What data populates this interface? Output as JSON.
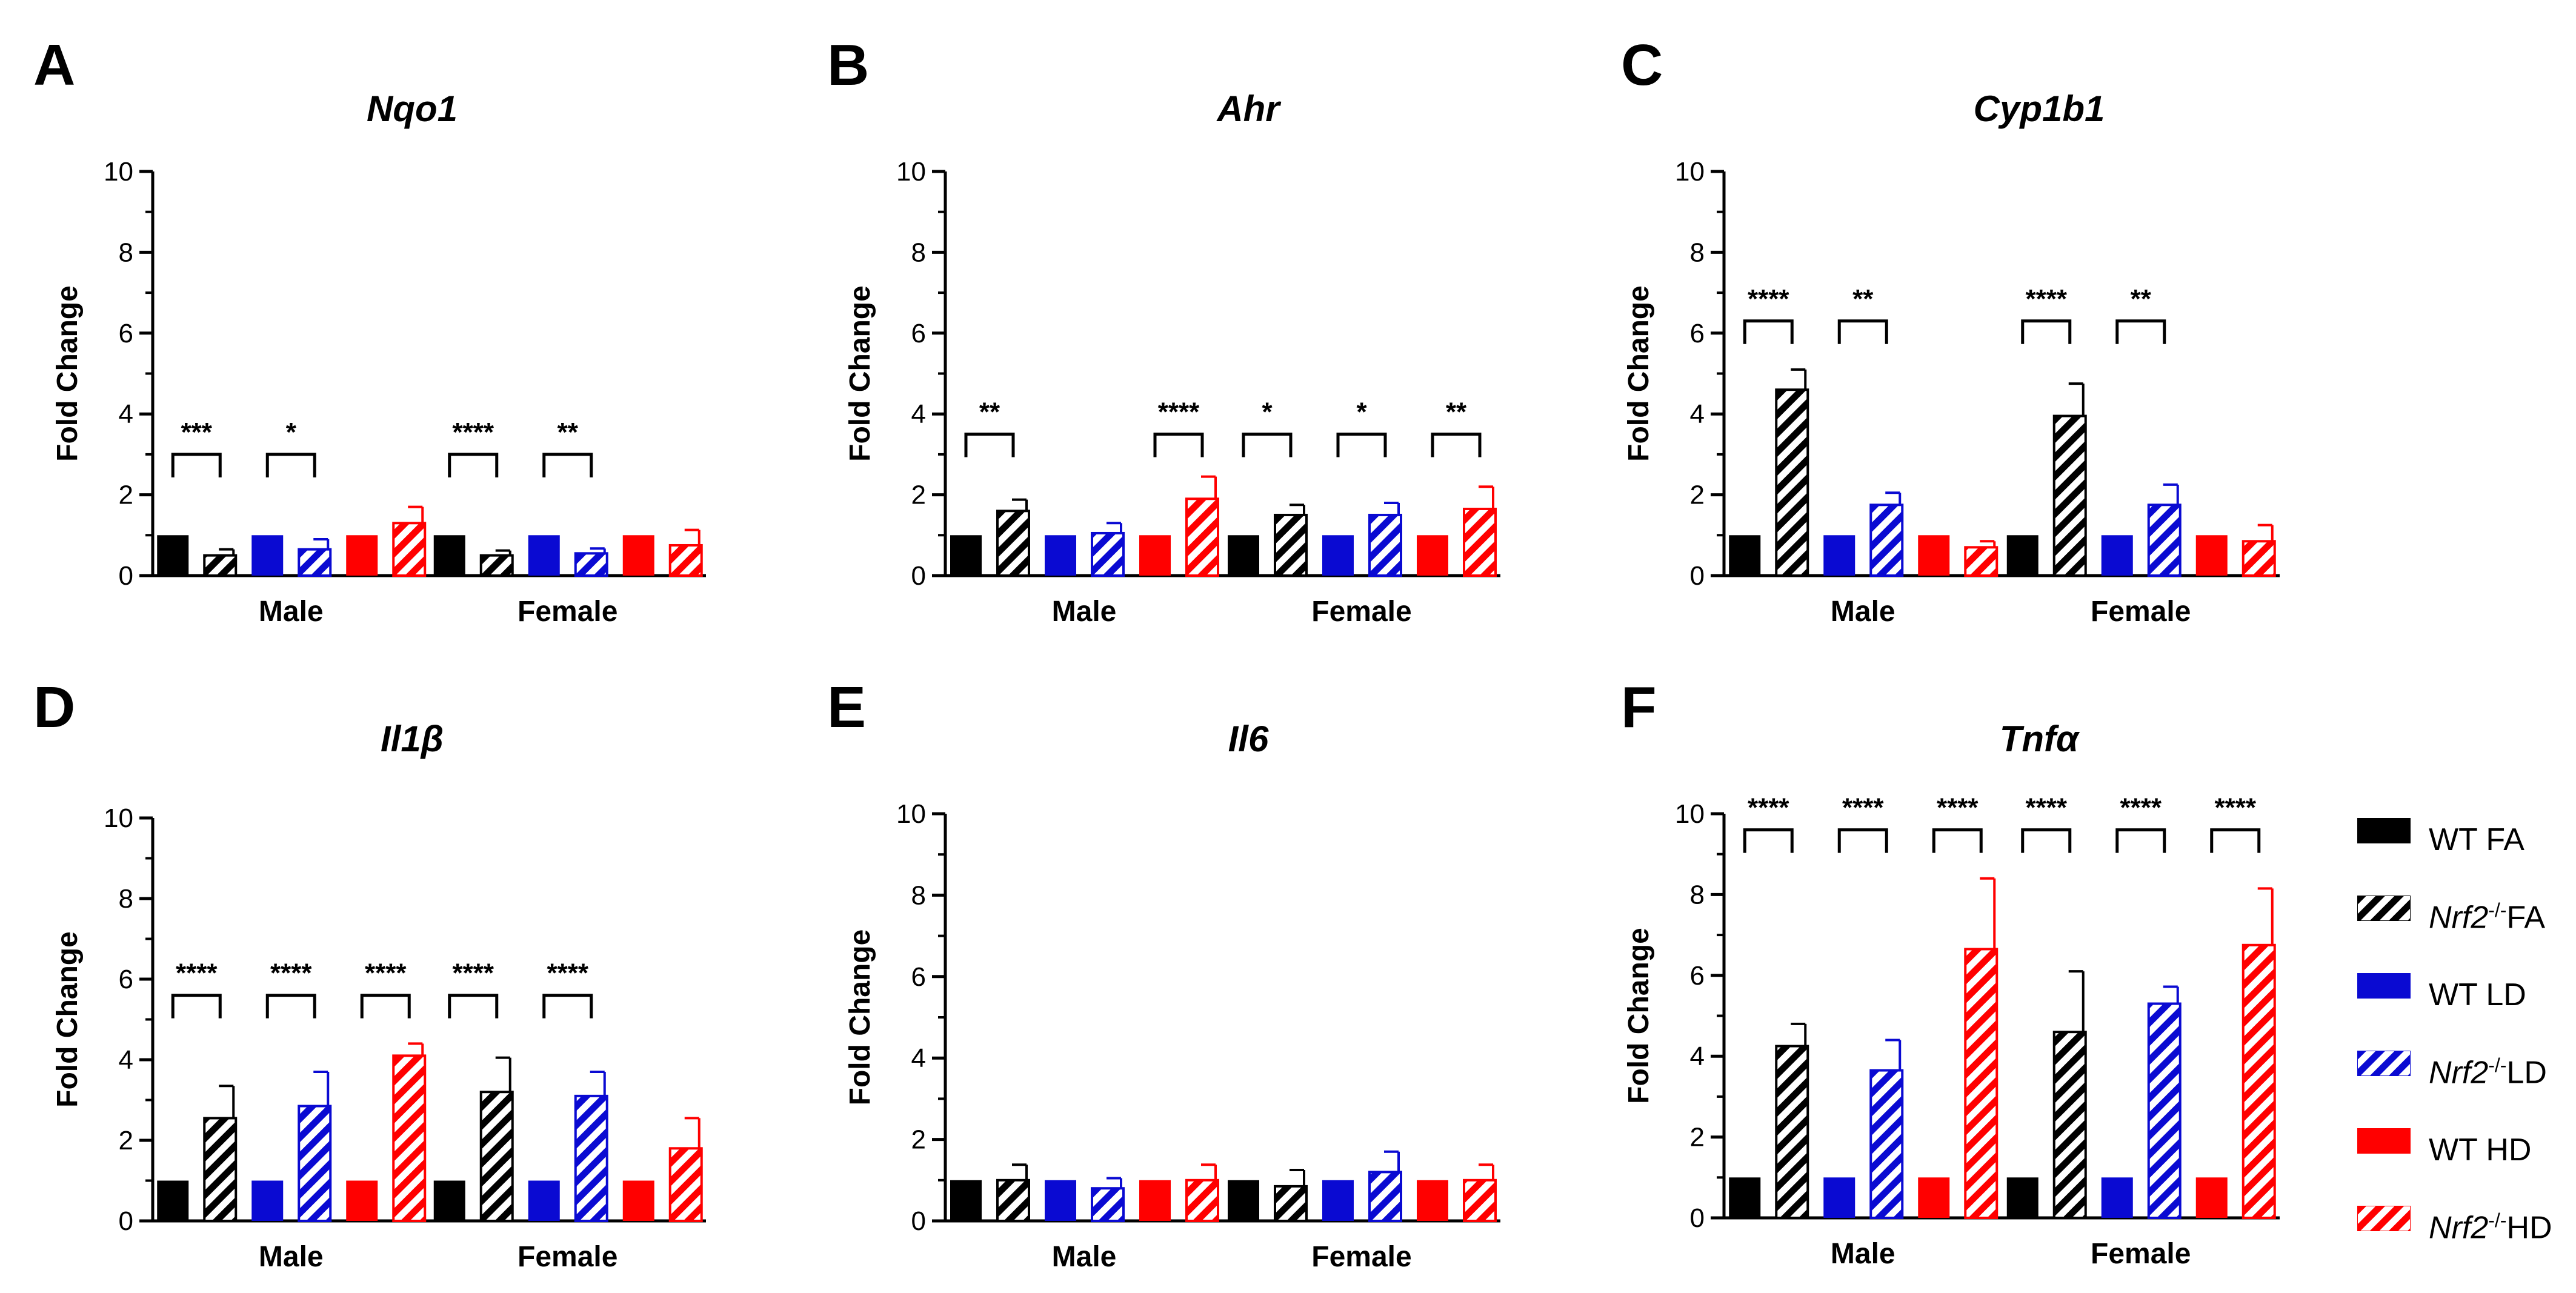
{
  "legend": {
    "items": [
      {
        "key": "wt_fa",
        "text": "WT FA",
        "italic": "",
        "sup": "",
        "suffix": "",
        "color": "#000000",
        "hatched": false
      },
      {
        "key": "nrf2_fa",
        "text": "",
        "italic": "Nrf2",
        "sup": "-/-",
        "suffix": "FA",
        "color": "#000000",
        "hatched": true
      },
      {
        "key": "wt_ld",
        "text": "WT LD",
        "italic": "",
        "sup": "",
        "suffix": "",
        "color": "#0a0ad2",
        "hatched": false
      },
      {
        "key": "nrf2_ld",
        "text": "",
        "italic": "Nrf2",
        "sup": "-/-",
        "suffix": "LD",
        "color": "#0a0ad2",
        "hatched": true
      },
      {
        "key": "wt_hd",
        "text": "WT HD",
        "italic": "",
        "sup": "",
        "suffix": "",
        "color": "#ff0000",
        "hatched": false
      },
      {
        "key": "nrf2_hd",
        "text": "",
        "italic": "Nrf2",
        "sup": "-/-",
        "suffix": "HD",
        "color": "#ff0000",
        "hatched": true
      }
    ]
  },
  "chart_data": [
    {
      "panel": "A",
      "type": "bar",
      "title": "Nqo1",
      "ylabel": "Fold Change",
      "ylim": [
        0,
        10
      ],
      "yticks": [
        0,
        2,
        4,
        6,
        8,
        10
      ],
      "categories": [
        "Male",
        "Female"
      ],
      "series": [
        {
          "name": "WT FA",
          "values": [
            1.0,
            1.0
          ],
          "errors": [
            0,
            0
          ]
        },
        {
          "name": "Nrf2-/- FA",
          "values": [
            0.5,
            0.5
          ],
          "errors": [
            0.15,
            0.12
          ]
        },
        {
          "name": "WT LD",
          "values": [
            1.0,
            1.0
          ],
          "errors": [
            0,
            0
          ]
        },
        {
          "name": "Nrf2-/- LD",
          "values": [
            0.65,
            0.55
          ],
          "errors": [
            0.25,
            0.12
          ]
        },
        {
          "name": "WT HD",
          "values": [
            1.0,
            1.0
          ],
          "errors": [
            0,
            0
          ]
        },
        {
          "name": "Nrf2-/- HD",
          "values": [
            1.3,
            0.75
          ],
          "errors": [
            0.4,
            0.38
          ]
        }
      ],
      "significance": [
        {
          "category": "Male",
          "pair": 0,
          "stars": "***",
          "y": 3.0
        },
        {
          "category": "Male",
          "pair": 1,
          "stars": "*",
          "y": 3.0
        },
        {
          "category": "Female",
          "pair": 0,
          "stars": "****",
          "y": 3.0
        },
        {
          "category": "Female",
          "pair": 1,
          "stars": "**",
          "y": 3.0
        }
      ]
    },
    {
      "panel": "B",
      "type": "bar",
      "title": "Ahr",
      "ylabel": "Fold Change",
      "ylim": [
        0,
        10
      ],
      "yticks": [
        0,
        2,
        4,
        6,
        8,
        10
      ],
      "categories": [
        "Male",
        "Female"
      ],
      "series": [
        {
          "name": "WT FA",
          "values": [
            1.0,
            1.0
          ],
          "errors": [
            0,
            0
          ]
        },
        {
          "name": "Nrf2-/- FA",
          "values": [
            1.6,
            1.5
          ],
          "errors": [
            0.28,
            0.25
          ]
        },
        {
          "name": "WT LD",
          "values": [
            1.0,
            1.0
          ],
          "errors": [
            0,
            0
          ]
        },
        {
          "name": "Nrf2-/- LD",
          "values": [
            1.05,
            1.5
          ],
          "errors": [
            0.25,
            0.3
          ]
        },
        {
          "name": "WT HD",
          "values": [
            1.0,
            1.0
          ],
          "errors": [
            0,
            0
          ]
        },
        {
          "name": "Nrf2-/- HD",
          "values": [
            1.9,
            1.65
          ],
          "errors": [
            0.55,
            0.55
          ]
        }
      ],
      "significance": [
        {
          "category": "Male",
          "pair": 0,
          "stars": "**",
          "y": 3.5
        },
        {
          "category": "Male",
          "pair": 2,
          "stars": "****",
          "y": 3.5
        },
        {
          "category": "Female",
          "pair": 0,
          "stars": "*",
          "y": 3.5
        },
        {
          "category": "Female",
          "pair": 1,
          "stars": "*",
          "y": 3.5
        },
        {
          "category": "Female",
          "pair": 2,
          "stars": "**",
          "y": 3.5
        }
      ]
    },
    {
      "panel": "C",
      "type": "bar",
      "title": "Cyp1b1",
      "ylabel": "Fold Change",
      "ylim": [
        0,
        10
      ],
      "yticks": [
        0,
        2,
        4,
        6,
        8,
        10
      ],
      "categories": [
        "Male",
        "Female"
      ],
      "series": [
        {
          "name": "WT FA",
          "values": [
            1.0,
            1.0
          ],
          "errors": [
            0,
            0
          ]
        },
        {
          "name": "Nrf2-/- FA",
          "values": [
            4.6,
            3.95
          ],
          "errors": [
            0.5,
            0.8
          ]
        },
        {
          "name": "WT LD",
          "values": [
            1.0,
            1.0
          ],
          "errors": [
            0,
            0
          ]
        },
        {
          "name": "Nrf2-/- LD",
          "values": [
            1.75,
            1.75
          ],
          "errors": [
            0.3,
            0.5
          ]
        },
        {
          "name": "WT HD",
          "values": [
            1.0,
            1.0
          ],
          "errors": [
            0,
            0
          ]
        },
        {
          "name": "Nrf2-/- HD",
          "values": [
            0.7,
            0.85
          ],
          "errors": [
            0.15,
            0.4
          ]
        }
      ],
      "significance": [
        {
          "category": "Male",
          "pair": 0,
          "stars": "****",
          "y": 6.3
        },
        {
          "category": "Male",
          "pair": 1,
          "stars": "**",
          "y": 6.3
        },
        {
          "category": "Female",
          "pair": 0,
          "stars": "****",
          "y": 6.3
        },
        {
          "category": "Female",
          "pair": 1,
          "stars": "**",
          "y": 6.3
        }
      ]
    },
    {
      "panel": "D",
      "type": "bar",
      "title": "Il1β",
      "ylabel": "Fold Change",
      "ylim": [
        0,
        10
      ],
      "yticks": [
        0,
        2,
        4,
        6,
        8,
        10
      ],
      "categories": [
        "Male",
        "Female"
      ],
      "series": [
        {
          "name": "WT FA",
          "values": [
            1.0,
            1.0
          ],
          "errors": [
            0,
            0
          ]
        },
        {
          "name": "Nrf2-/- FA",
          "values": [
            2.55,
            3.2
          ],
          "errors": [
            0.8,
            0.85
          ]
        },
        {
          "name": "WT LD",
          "values": [
            1.0,
            1.0
          ],
          "errors": [
            0,
            0
          ]
        },
        {
          "name": "Nrf2-/- LD",
          "values": [
            2.85,
            3.1
          ],
          "errors": [
            0.85,
            0.6
          ]
        },
        {
          "name": "WT HD",
          "values": [
            1.0,
            1.0
          ],
          "errors": [
            0,
            0
          ]
        },
        {
          "name": "Nrf2-/- HD",
          "values": [
            4.1,
            1.8
          ],
          "errors": [
            0.3,
            0.75
          ]
        }
      ],
      "significance": [
        {
          "category": "Male",
          "pair": 0,
          "stars": "****",
          "y": 5.6
        },
        {
          "category": "Male",
          "pair": 1,
          "stars": "****",
          "y": 5.6
        },
        {
          "category": "Male",
          "pair": 2,
          "stars": "****",
          "y": 5.6
        },
        {
          "category": "Female",
          "pair": 0,
          "stars": "****",
          "y": 5.6
        },
        {
          "category": "Female",
          "pair": 1,
          "stars": "****",
          "y": 5.6
        }
      ]
    },
    {
      "panel": "E",
      "type": "bar",
      "title": "Il6",
      "ylabel": "Fold Change",
      "ylim": [
        0,
        10
      ],
      "yticks": [
        0,
        2,
        4,
        6,
        8,
        10
      ],
      "categories": [
        "Male",
        "Female"
      ],
      "series": [
        {
          "name": "WT FA",
          "values": [
            1.0,
            1.0
          ],
          "errors": [
            0,
            0
          ]
        },
        {
          "name": "Nrf2-/- FA",
          "values": [
            1.0,
            0.85
          ],
          "errors": [
            0.38,
            0.4
          ]
        },
        {
          "name": "WT LD",
          "values": [
            1.0,
            1.0
          ],
          "errors": [
            0,
            0
          ]
        },
        {
          "name": "Nrf2-/- LD",
          "values": [
            0.8,
            1.2
          ],
          "errors": [
            0.25,
            0.5
          ]
        },
        {
          "name": "WT HD",
          "values": [
            1.0,
            1.0
          ],
          "errors": [
            0,
            0
          ]
        },
        {
          "name": "Nrf2-/- HD",
          "values": [
            1.0,
            1.0
          ],
          "errors": [
            0.38,
            0.38
          ]
        }
      ],
      "significance": []
    },
    {
      "panel": "F",
      "type": "bar",
      "title": "Tnfα",
      "ylabel": "Fold Change",
      "ylim": [
        0,
        10
      ],
      "yticks": [
        0,
        2,
        4,
        6,
        8,
        10
      ],
      "categories": [
        "Male",
        "Female"
      ],
      "series": [
        {
          "name": "WT FA",
          "values": [
            1.0,
            1.0
          ],
          "errors": [
            0,
            0
          ]
        },
        {
          "name": "Nrf2-/- FA",
          "values": [
            4.25,
            4.6
          ],
          "errors": [
            0.55,
            1.5
          ]
        },
        {
          "name": "WT LD",
          "values": [
            1.0,
            1.0
          ],
          "errors": [
            0,
            0
          ]
        },
        {
          "name": "Nrf2-/- LD",
          "values": [
            3.65,
            5.3
          ],
          "errors": [
            0.75,
            0.42
          ]
        },
        {
          "name": "WT HD",
          "values": [
            1.0,
            1.0
          ],
          "errors": [
            0,
            0
          ]
        },
        {
          "name": "Nrf2-/- HD",
          "values": [
            6.65,
            6.75
          ],
          "errors": [
            1.75,
            1.4
          ]
        }
      ],
      "significance": [
        {
          "category": "Male",
          "pair": 0,
          "stars": "****",
          "y": 9.6
        },
        {
          "category": "Male",
          "pair": 1,
          "stars": "****",
          "y": 9.6
        },
        {
          "category": "Male",
          "pair": 2,
          "stars": "****",
          "y": 9.6
        },
        {
          "category": "Female",
          "pair": 0,
          "stars": "****",
          "y": 9.6
        },
        {
          "category": "Female",
          "pair": 1,
          "stars": "****",
          "y": 9.6
        },
        {
          "category": "Female",
          "pair": 2,
          "stars": "****",
          "y": 9.6
        }
      ]
    }
  ]
}
